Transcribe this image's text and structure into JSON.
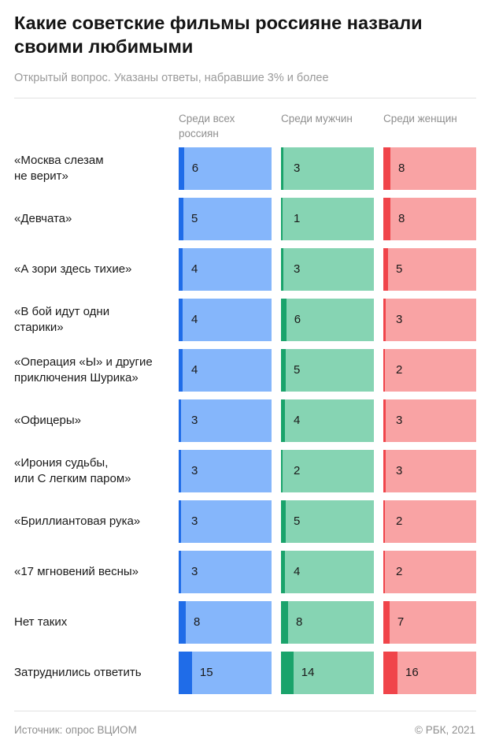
{
  "title": "Какие советские фильмы россияне назвали своими любимыми",
  "subtitle": "Открытый вопрос. Указаны ответы, набравшие 3% и более",
  "footer": {
    "source": "Источник: опрос ВЦИОМ",
    "copyright": "© РБК, 2021"
  },
  "chart_data": {
    "type": "table",
    "categories": [
      "«Москва слезам не верит»",
      "«Девчата»",
      "«А зори здесь тихие»",
      "«В бой идут одни старики»",
      "«Операция «Ы» и другие приключения Шурика»",
      "«Офицеры»",
      "«Ирония судьбы, или С легким паром»",
      "«Бриллиантовая рука»",
      "«17 мгновений весны»",
      "Нет таких",
      "Затруднились ответить"
    ],
    "category_lines": [
      [
        "«Москва слезам",
        "не верит»"
      ],
      [
        "«Девчата»"
      ],
      [
        "«А зори здесь тихие»"
      ],
      [
        "«В бой идут одни",
        "старики»"
      ],
      [
        "«Операция «Ы» и другие",
        "приключения Шурика»"
      ],
      [
        "«Офицеры»"
      ],
      [
        "«Ирония судьбы,",
        "или С легким паром»"
      ],
      [
        "«Бриллиантовая рука»"
      ],
      [
        "«17 мгновений весны»"
      ],
      [
        "Нет таких"
      ],
      [
        "Затруднились ответить"
      ]
    ],
    "series": [
      {
        "name": "Среди всех россиян",
        "name_lines": [
          "Среди всех",
          "россиян"
        ],
        "values": [
          6,
          5,
          4,
          4,
          4,
          3,
          3,
          3,
          3,
          8,
          15
        ],
        "color_light": "#85b6fb",
        "color_dark": "#1f6ce8"
      },
      {
        "name": "Среди мужчин",
        "name_lines": [
          "Среди мужчин"
        ],
        "values": [
          3,
          1,
          3,
          6,
          5,
          4,
          2,
          5,
          4,
          8,
          14
        ],
        "color_light": "#86d4b3",
        "color_dark": "#1aa36b"
      },
      {
        "name": "Среди женщин",
        "name_lines": [
          "Среди женщин"
        ],
        "values": [
          8,
          8,
          5,
          3,
          2,
          3,
          3,
          2,
          2,
          7,
          16
        ],
        "color_light": "#f9a3a4",
        "color_dark": "#f0444a"
      }
    ],
    "unit": "%",
    "scale_max": 16
  }
}
